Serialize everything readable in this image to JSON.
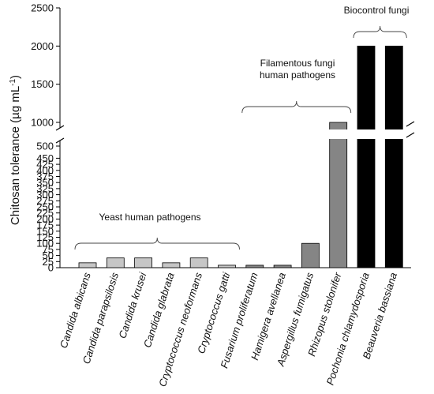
{
  "chart_data": {
    "type": "bar",
    "ylabel": "Chitosan tolerance (µg mL",
    "ylabel_sup": "-1",
    "ylabel_close": ")",
    "axis_break": [
      500,
      1000
    ],
    "lower_ylim": [
      0,
      500
    ],
    "upper_ylim": [
      1000,
      2500
    ],
    "lower_ticks": [
      "0",
      "25",
      "50",
      "75",
      "100",
      "125",
      "150",
      "175",
      "200",
      "225",
      "250",
      "275",
      "300",
      "325",
      "350",
      "375",
      "400",
      "425",
      "450",
      "500"
    ],
    "lower_tick_values": [
      0,
      25,
      50,
      75,
      100,
      125,
      150,
      175,
      200,
      225,
      250,
      275,
      300,
      325,
      350,
      375,
      400,
      425,
      450,
      500
    ],
    "upper_ticks": [
      "1000",
      "1500",
      "2000",
      "2500"
    ],
    "upper_tick_values": [
      1000,
      1500,
      2000,
      2500
    ],
    "categories": [
      "Candida albicans",
      "Candida parapsilosis",
      "Candida krusei",
      "Candida glabrata",
      "Cryptococcus neoformans",
      "Cryptococcus gatti",
      "Fusarium proliferatum",
      "Hamigera avellanea",
      "Aspergillus fumigatus",
      "Rhizopus stolonifer",
      "Pochonia chlamydosporia",
      "Beauveria bassiana"
    ],
    "values": [
      20,
      40,
      40,
      20,
      40,
      10,
      10,
      10,
      100,
      1000,
      2000,
      2000
    ],
    "bar_colors": [
      "#c6c6c6",
      "#c6c6c6",
      "#c6c6c6",
      "#c6c6c6",
      "#c6c6c6",
      "#c6c6c6",
      "#858585",
      "#858585",
      "#858585",
      "#858585",
      "#000000",
      "#000000"
    ],
    "groups": [
      {
        "label": "Yeast human pathogens",
        "lines": [
          "Yeast human pathogens"
        ],
        "from": 0,
        "to": 5
      },
      {
        "label": "Filamentous fungi human pathogens",
        "lines": [
          "Filamentous fungi",
          "human pathogens"
        ],
        "from": 6,
        "to": 9
      },
      {
        "label": "Biocontrol fungi",
        "lines": [
          "Biocontrol fungi"
        ],
        "from": 10,
        "to": 11
      }
    ]
  }
}
